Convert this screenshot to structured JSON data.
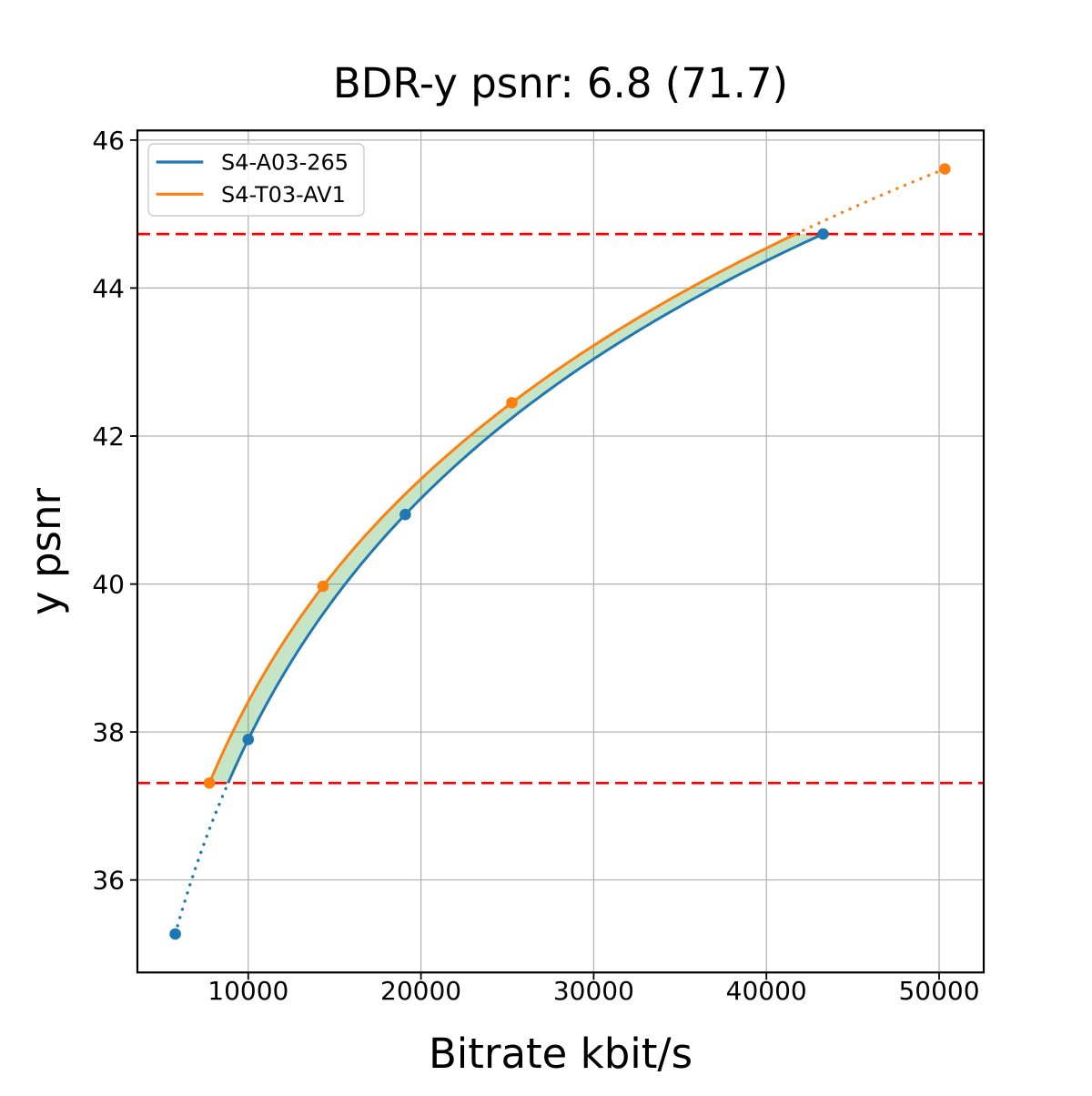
{
  "figure": {
    "background": "#ffffff"
  },
  "chart_data": {
    "type": "line",
    "title": "BDR-y psnr: 6.8 (71.7)",
    "xlabel": "Bitrate kbit/s",
    "ylabel": "y psnr",
    "xlim": [
      3580,
      52580
    ],
    "ylim": [
      34.75,
      46.13
    ],
    "xticks": [
      10000,
      20000,
      30000,
      40000,
      50000
    ],
    "yticks": [
      36,
      38,
      40,
      42,
      44,
      46
    ],
    "grid": true,
    "grid_color": "#b0b0b0",
    "frame_color": "#000000",
    "legend": {
      "position": "upper-left"
    },
    "series": [
      {
        "name": "S4-A03-265",
        "color": "#1f77b4",
        "marker": "circle",
        "points": [
          [
            5770,
            35.27
          ],
          [
            10000,
            37.9
          ],
          [
            19090,
            40.94
          ],
          [
            43280,
            44.73
          ]
        ]
      },
      {
        "name": "S4-T03-AV1",
        "color": "#ff7f0e",
        "marker": "circle",
        "points": [
          [
            7750,
            37.31
          ],
          [
            14330,
            39.97
          ],
          [
            25260,
            42.45
          ],
          [
            50330,
            45.61
          ]
        ]
      }
    ],
    "integration_range": {
      "psnr_low": 37.31,
      "psnr_high": 44.73,
      "line_color": "#ff0000",
      "line_style": "dashed"
    },
    "fill_between": {
      "color": "#2ca02c",
      "opacity": 0.27
    }
  }
}
